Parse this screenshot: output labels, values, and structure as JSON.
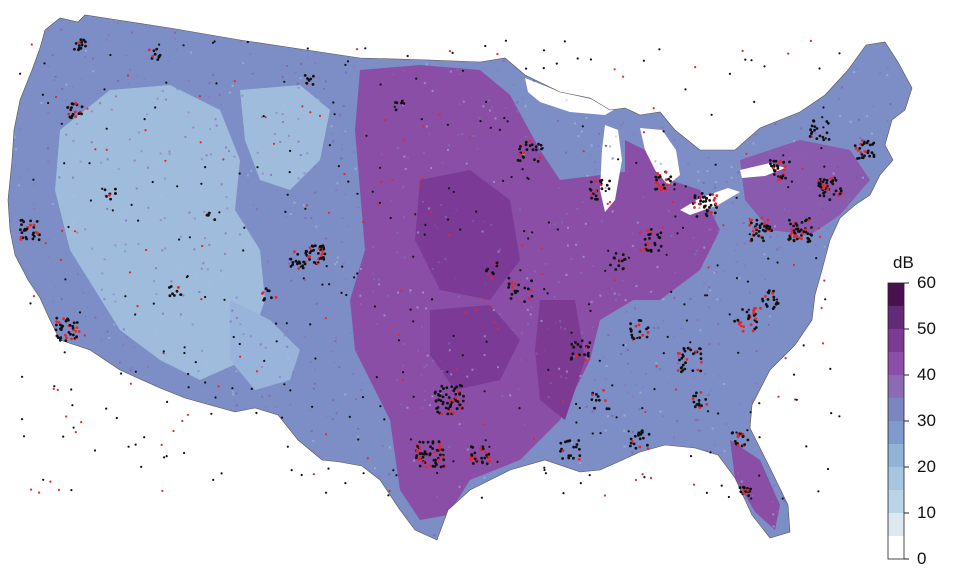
{
  "legend": {
    "title": "dB",
    "ticks": [
      {
        "label": "60",
        "value": 60
      },
      {
        "label": "50",
        "value": 50
      },
      {
        "label": "40",
        "value": 40
      },
      {
        "label": "30",
        "value": 30
      },
      {
        "label": "20",
        "value": 20
      },
      {
        "label": "10",
        "value": 10
      },
      {
        "label": "0",
        "value": 0
      }
    ],
    "bins": [
      {
        "from": 0,
        "to": 5,
        "color": "#ffffff"
      },
      {
        "from": 5,
        "to": 10,
        "color": "#dce8f2"
      },
      {
        "from": 10,
        "to": 15,
        "color": "#b9d3e7"
      },
      {
        "from": 15,
        "to": 20,
        "color": "#a6c6e0"
      },
      {
        "from": 20,
        "to": 25,
        "color": "#8fb4d6"
      },
      {
        "from": 25,
        "to": 30,
        "color": "#7e9bcb"
      },
      {
        "from": 30,
        "to": 35,
        "color": "#7b86c0"
      },
      {
        "from": 35,
        "to": 40,
        "color": "#8a6bb4"
      },
      {
        "from": 40,
        "to": 45,
        "color": "#8c4ea7"
      },
      {
        "from": 45,
        "to": 50,
        "color": "#7d3a93"
      },
      {
        "from": 50,
        "to": 55,
        "color": "#632a7a"
      },
      {
        "from": 55,
        "to": 60,
        "color": "#4a1050"
      }
    ]
  },
  "colors": {
    "base_land": "#7d8ec6",
    "arid_west": "#9fbcdc",
    "loud_central": "#8a4ea6",
    "loud_core": "#7a3a95",
    "city_black": "#111111",
    "city_red": "#e6262a",
    "border": "#444444"
  }
}
